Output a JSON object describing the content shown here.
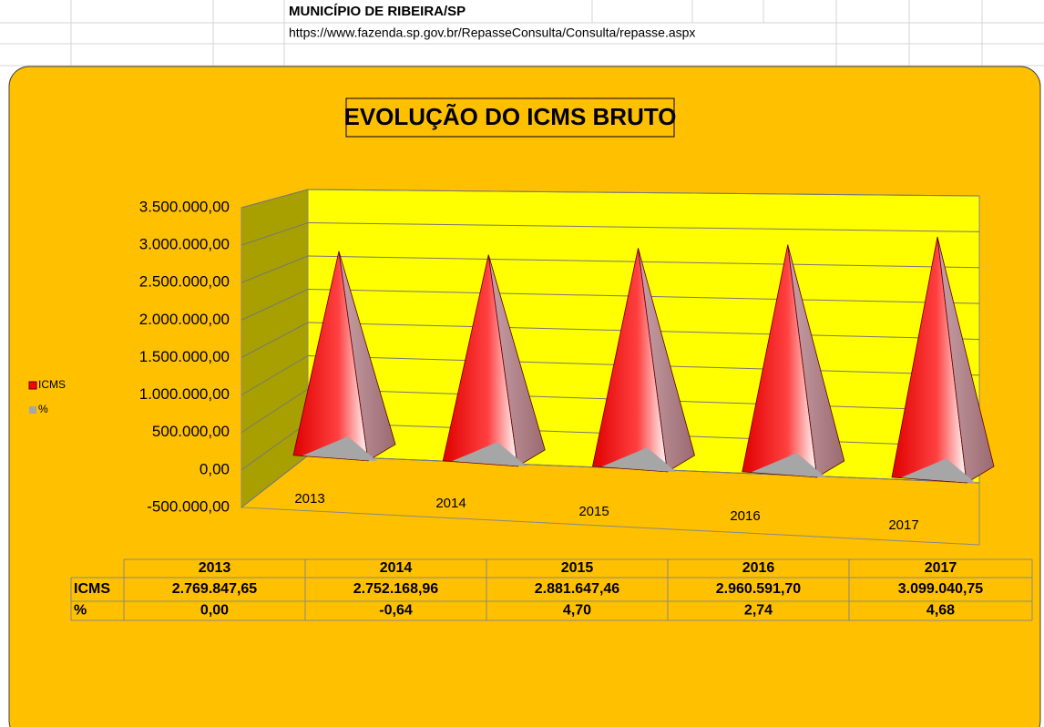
{
  "sheet": {
    "title": "MUNICÍPIO DE RIBEIRA/SP",
    "url": "https://www.fazenda.sp.gov.br/RepasseConsulta/Consulta/repasse.aspx"
  },
  "chart_data": {
    "type": "pyramid3d",
    "title": "EVOLUÇÃO DO ICMS BRUTO",
    "categories": [
      "2013",
      "2014",
      "2015",
      "2016",
      "2017"
    ],
    "series": [
      {
        "name": "ICMS",
        "color": "#ff0000",
        "values": [
          2769847.65,
          2752168.96,
          2881647.46,
          2960591.7,
          3099040.75
        ],
        "value_labels": [
          "2.769.847,65",
          "2.752.168,96",
          "2.881.647,46",
          "2.960.591,70",
          "3.099.040,75"
        ]
      },
      {
        "name": "%",
        "color": "#a6a6a6",
        "values": [
          0.0,
          -0.64,
          4.7,
          2.74,
          4.68
        ],
        "value_labels": [
          "0,00",
          "-0,64",
          "4,70",
          "2,74",
          "4,68"
        ]
      }
    ],
    "ylim": [
      -500000,
      3500000
    ],
    "yticks": [
      {
        "value": -500000,
        "label": "-500.000,00"
      },
      {
        "value": 0,
        "label": "0,00"
      },
      {
        "value": 500000,
        "label": "500.000,00"
      },
      {
        "value": 1000000,
        "label": "1.000.000,00"
      },
      {
        "value": 1500000,
        "label": "1.500.000,00"
      },
      {
        "value": 2000000,
        "label": "2.000.000,00"
      },
      {
        "value": 2500000,
        "label": "2.500.000,00"
      },
      {
        "value": 3000000,
        "label": "3.000.000,00"
      },
      {
        "value": 3500000,
        "label": "3.500.000,00"
      }
    ],
    "grid": true,
    "legend": "left",
    "data_table": true
  }
}
